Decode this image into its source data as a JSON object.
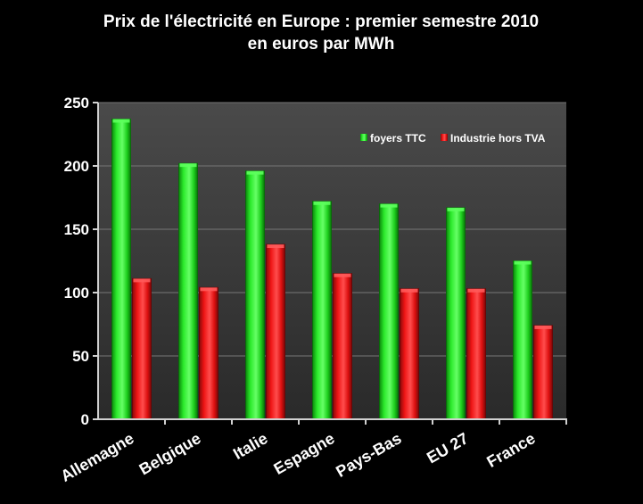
{
  "chart_data": {
    "type": "bar",
    "title": "Prix de l'électricité en Europe : premier semestre 2010",
    "subtitle": "en euros par MWh",
    "categories": [
      "Allemagne",
      "Belgique",
      "Italie",
      "Espagne",
      "Pays-Bas",
      "EU 27",
      "France"
    ],
    "series": [
      {
        "name": "foyers TTC",
        "color": "#22dd22",
        "values": [
          237,
          202,
          196,
          172,
          170,
          167,
          125
        ]
      },
      {
        "name": "Industrie hors TVA",
        "color": "#ee1111",
        "values": [
          111,
          104,
          138,
          115,
          103,
          103,
          74
        ]
      }
    ],
    "yticks": [
      "0",
      "50",
      "100",
      "150",
      "200",
      "250"
    ],
    "ylim": [
      0,
      250
    ],
    "grid": true,
    "legend_position": "top-right",
    "background": "#000000",
    "plot_background": "#404040"
  }
}
